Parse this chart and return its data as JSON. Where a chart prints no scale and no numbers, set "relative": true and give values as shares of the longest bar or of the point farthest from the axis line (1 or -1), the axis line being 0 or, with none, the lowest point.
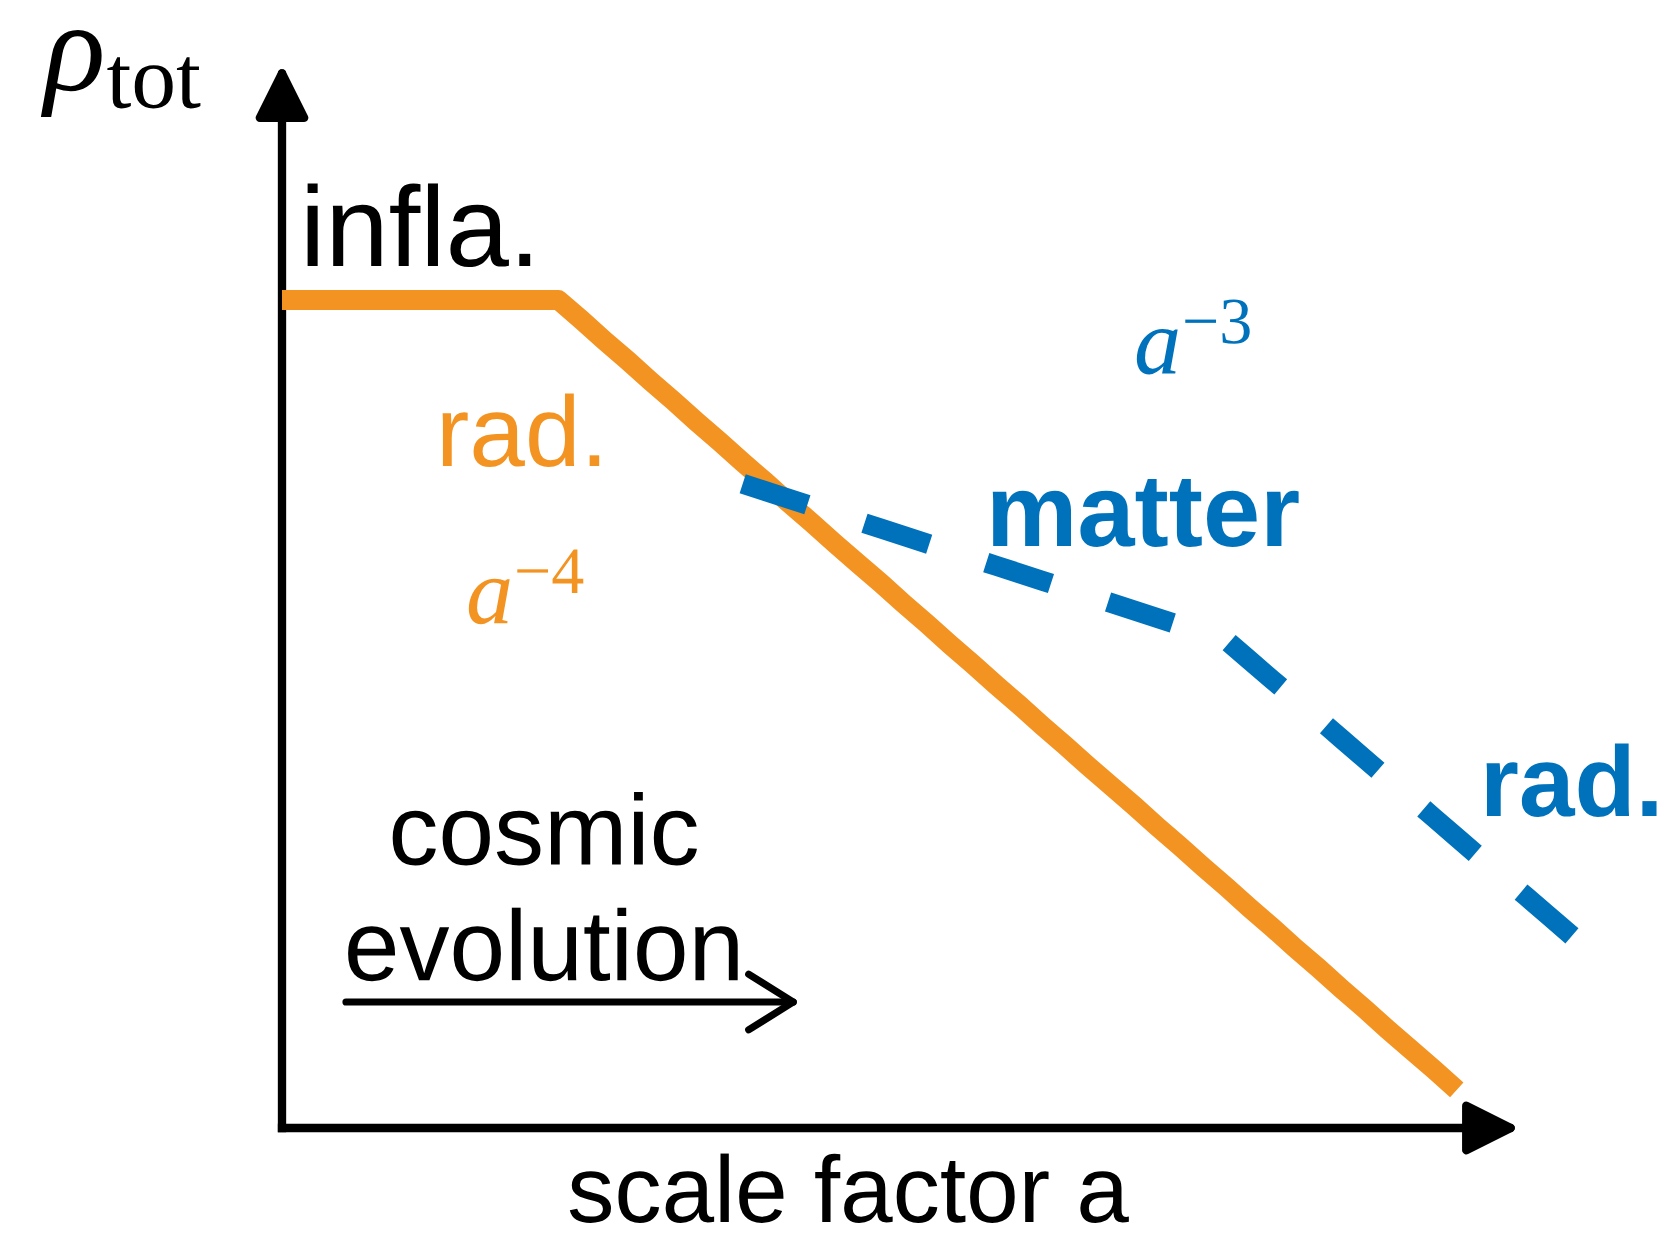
{
  "chart_data": {
    "type": "line",
    "relative": true,
    "xlabel": "scale factor a",
    "ylabel": "ρ$_{tot}$",
    "categories": [
      null,
      null,
      null,
      null,
      null,
      null,
      null,
      null,
      null,
      null,
      null,
      null,
      null,
      null,
      null,
      null,
      null,
      null,
      null,
      null,
      null,
      null,
      null,
      null,
      null,
      null,
      null,
      null,
      null,
      null,
      null,
      null,
      null,
      null,
      null,
      null,
      null,
      null,
      null,
      null,
      null,
      null,
      null,
      null,
      null,
      null,
      null,
      null,
      null,
      null,
      null,
      null,
      null,
      null,
      null,
      null,
      null
    ],
    "series": [
      {
        "color": "#f39322",
        "line_style": "solid",
        "values": [
          1,
          1,
          1,
          1,
          1,
          1,
          1,
          1,
          1,
          1,
          1,
          1,
          1,
          0.976,
          0.951,
          0.927,
          0.902,
          0.878,
          0.853,
          0.829,
          0.804,
          0.78,
          0.755,
          0.731,
          0.706,
          0.682,
          0.658,
          0.633,
          0.609,
          0.584,
          0.56,
          0.535,
          0.511,
          0.486,
          0.462,
          0.437,
          0.413,
          0.389,
          0.364,
          0.34,
          0.315,
          0.291,
          0.266,
          0.242,
          0.217,
          0.193,
          0.168,
          0.144,
          0.119,
          0.095,
          0.071,
          0.046,
          null,
          null,
          null,
          null,
          null
        ]
      },
      {
        "color": "#0072bc",
        "line_style": "dashed",
        "values": [
          null,
          null,
          null,
          null,
          null,
          null,
          null,
          null,
          null,
          null,
          null,
          null,
          null,
          null,
          null,
          null,
          null,
          null,
          null,
          null,
          0.778,
          0.769,
          0.76,
          0.751,
          0.742,
          0.733,
          0.724,
          0.715,
          0.706,
          0.697,
          0.688,
          0.679,
          0.67,
          0.661,
          0.652,
          0.643,
          0.634,
          0.625,
          0.616,
          0.607,
          0.598,
          0.589,
          0.565,
          0.541,
          0.518,
          0.494,
          0.47,
          0.446,
          0.422,
          0.399,
          0.375,
          0.351,
          0.327,
          0.303,
          0.28,
          0.256,
          0.232
        ]
      }
    ],
    "annotations": [
      "infla.",
      "rad.",
      "a$^{−4}$",
      "a$^{−3}$",
      "matter",
      "rad.",
      "cosmic\nevolution"
    ]
  }
}
